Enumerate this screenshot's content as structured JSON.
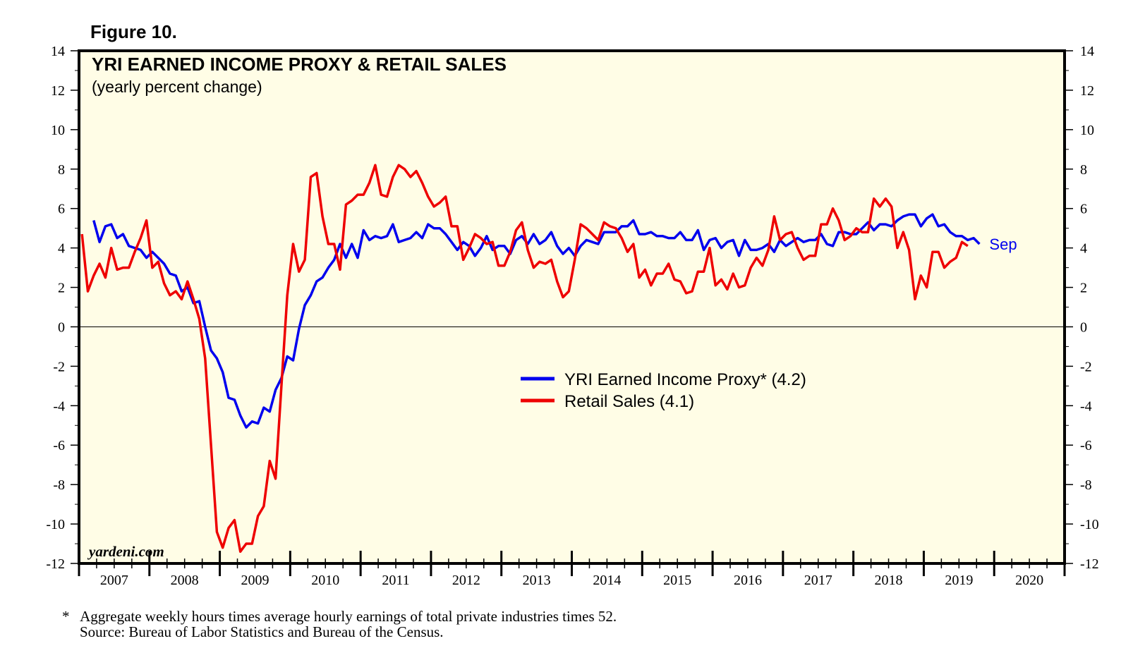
{
  "figure_label": "Figure 10.",
  "watermark": "yardeni.com",
  "footnote": "*   Aggregate weekly hours times average hourly earnings of total private industries times 52.",
  "source": "Source: Bureau of Labor Statistics and Bureau of the Census.",
  "colors": {
    "plot_background": "#fffde6",
    "income_series": "#0000ee",
    "retail_series": "#ee0000",
    "frame": "#000000"
  },
  "chart_data": {
    "type": "line",
    "title": "YRI EARNED INCOME PROXY & RETAIL SALES",
    "subtitle": "(yearly percent change)",
    "x_axis": {
      "categories": [
        "2007",
        "2008",
        "2009",
        "2010",
        "2011",
        "2012",
        "2013",
        "2014",
        "2015",
        "2016",
        "2017",
        "2018",
        "2019",
        "2020"
      ],
      "range": [
        2007,
        2021
      ]
    },
    "y_axis": {
      "range": [
        -12,
        14
      ],
      "ticks": [
        14,
        12,
        10,
        8,
        6,
        4,
        2,
        0,
        -2,
        -4,
        -6,
        -8,
        -10,
        -12
      ],
      "labels_left_and_right": true
    },
    "zero_line": true,
    "end_annotation": "Sep",
    "legend": {
      "placement": "center",
      "entries": [
        {
          "series": 0,
          "label": "YRI Earned Income Proxy* (4.2)"
        },
        {
          "series": 1,
          "label": "Retail Sales (4.1)"
        }
      ]
    },
    "series": [
      {
        "name": "YRI Earned Income Proxy* (4.2)",
        "color": "#0000ee",
        "x_start": "2007-03",
        "monthly": true,
        "values": [
          5.4,
          4.3,
          5.1,
          5.2,
          4.5,
          4.7,
          4.1,
          4.0,
          3.9,
          3.5,
          3.8,
          3.5,
          3.2,
          2.7,
          2.6,
          1.8,
          2.0,
          1.2,
          1.3,
          0.0,
          -1.2,
          -1.6,
          -2.3,
          -3.6,
          -3.7,
          -4.5,
          -5.1,
          -4.8,
          -4.9,
          -4.1,
          -4.3,
          -3.2,
          -2.6,
          -1.5,
          -1.7,
          -0.1,
          1.1,
          1.6,
          2.3,
          2.5,
          3.0,
          3.4,
          4.2,
          3.5,
          4.2,
          3.5,
          4.9,
          4.4,
          4.6,
          4.5,
          4.6,
          5.2,
          4.3,
          4.4,
          4.5,
          4.8,
          4.5,
          5.2,
          5.0,
          5.0,
          4.7,
          4.3,
          3.9,
          4.3,
          4.1,
          3.6,
          4.0,
          4.6,
          3.9,
          4.1,
          4.1,
          3.7,
          4.4,
          4.6,
          4.2,
          4.7,
          4.2,
          4.4,
          4.8,
          4.1,
          3.7,
          4.0,
          3.6,
          4.1,
          4.4,
          4.3,
          4.2,
          4.8,
          4.8,
          4.8,
          5.1,
          5.1,
          5.4,
          4.7,
          4.7,
          4.8,
          4.6,
          4.6,
          4.5,
          4.5,
          4.8,
          4.4,
          4.4,
          4.9,
          3.9,
          4.4,
          4.5,
          4.0,
          4.3,
          4.4,
          3.6,
          4.4,
          3.9,
          3.9,
          4.0,
          4.2,
          3.8,
          4.4,
          4.1,
          4.3,
          4.5,
          4.3,
          4.4,
          4.4,
          4.7,
          4.2,
          4.1,
          4.8,
          4.8,
          4.7,
          4.7,
          5.0,
          5.3,
          4.9,
          5.2,
          5.2,
          5.1,
          5.4,
          5.6,
          5.7,
          5.7,
          5.1,
          5.5,
          5.7,
          5.1,
          5.2,
          4.8,
          4.6,
          4.6,
          4.4,
          4.5,
          4.2
        ]
      },
      {
        "name": "Retail Sales (4.1)",
        "color": "#ee0000",
        "x_start": "2007-01",
        "monthly": true,
        "values": [
          4.7,
          1.8,
          2.6,
          3.2,
          2.5,
          4.0,
          2.9,
          3.0,
          3.0,
          3.8,
          4.5,
          5.4,
          3.0,
          3.3,
          2.2,
          1.6,
          1.8,
          1.4,
          2.3,
          1.4,
          0.4,
          -1.6,
          -6.0,
          -10.4,
          -11.2,
          -10.2,
          -9.8,
          -11.4,
          -11.0,
          -11.0,
          -9.6,
          -9.1,
          -6.8,
          -7.7,
          -3.0,
          1.6,
          4.2,
          2.8,
          3.4,
          7.6,
          7.8,
          5.6,
          4.2,
          4.2,
          2.9,
          6.2,
          6.4,
          6.7,
          6.7,
          7.3,
          8.2,
          6.7,
          6.6,
          7.6,
          8.2,
          8.0,
          7.6,
          7.9,
          7.3,
          6.6,
          6.1,
          6.3,
          6.6,
          5.1,
          5.1,
          3.4,
          4.0,
          4.7,
          4.5,
          4.2,
          4.3,
          3.1,
          3.1,
          3.8,
          4.9,
          5.3,
          3.9,
          3.0,
          3.3,
          3.2,
          3.4,
          2.3,
          1.5,
          1.8,
          3.4,
          5.2,
          5.0,
          4.7,
          4.4,
          5.3,
          5.1,
          5.0,
          4.5,
          3.8,
          4.2,
          2.5,
          2.9,
          2.1,
          2.7,
          2.7,
          3.2,
          2.4,
          2.3,
          1.7,
          1.8,
          2.8,
          2.8,
          4.0,
          2.1,
          2.4,
          1.9,
          2.7,
          2.0,
          2.1,
          3.0,
          3.5,
          3.1,
          3.9,
          5.6,
          4.4,
          4.7,
          4.8,
          4.0,
          3.4,
          3.6,
          3.6,
          5.2,
          5.2,
          6.0,
          5.4,
          4.4,
          4.6,
          5.0,
          4.8,
          4.8,
          6.5,
          6.1,
          6.5,
          6.1,
          4.0,
          4.8,
          3.9,
          1.4,
          2.6,
          2.0,
          3.8,
          3.8,
          3.0,
          3.3,
          3.5,
          4.3,
          4.1
        ]
      }
    ]
  }
}
